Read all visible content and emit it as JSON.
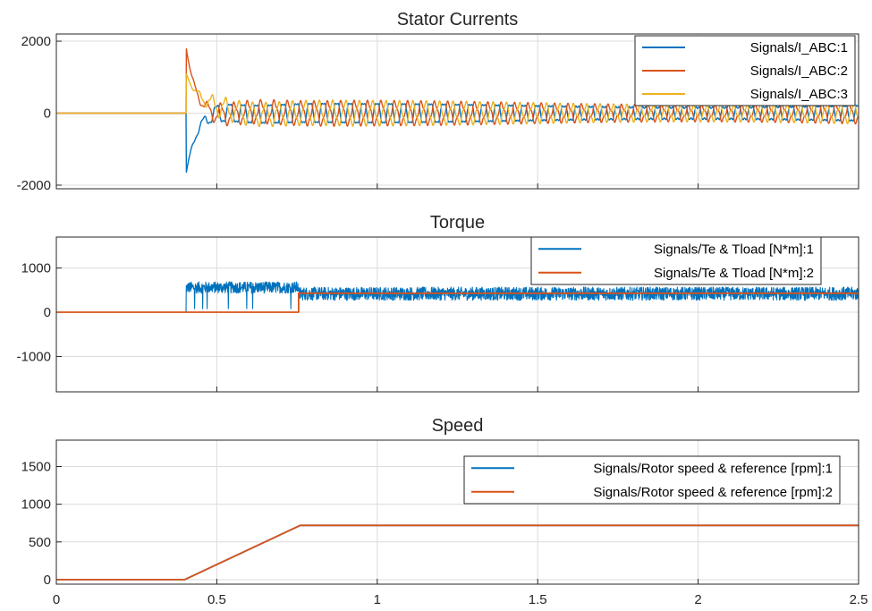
{
  "chart_data": [
    {
      "type": "line",
      "title": "Stator Currents",
      "xlim": [
        0,
        2.5
      ],
      "ylim": [
        -2100,
        2200
      ],
      "xticks": [
        0,
        0.5,
        1,
        1.5,
        2,
        2.5
      ],
      "xtick_labels": [
        "",
        "",
        "",
        "",
        "",
        ""
      ],
      "yticks": [
        -2000,
        0,
        2000
      ],
      "ytick_labels": [
        "-2000",
        "0",
        "2000"
      ],
      "grid": true,
      "legend_position": "top-right",
      "series": [
        {
          "name": "Signals/I_ABC:1",
          "color": "#0072BD"
        },
        {
          "name": "Signals/I_ABC:2",
          "color": "#D95319"
        },
        {
          "name": "Signals/I_ABC:3",
          "color": "#EDB120"
        }
      ],
      "description": "Three-phase currents: 0 until t=0.40, large transient peaks (~1800 phase 2, ~-1650 phase 1, ~1100 phase 3) decaying by ~0.6, then steady oscillation amplitude ~300-400 with ~25 periods to 2.5"
    },
    {
      "type": "line",
      "title": "Torque",
      "xlim": [
        0,
        2.5
      ],
      "ylim": [
        -1800,
        1700
      ],
      "xticks": [
        0,
        0.5,
        1,
        1.5,
        2,
        2.5
      ],
      "xtick_labels": [
        "",
        "",
        "",
        "",
        "",
        ""
      ],
      "yticks": [
        -1000,
        0,
        1000
      ],
      "ytick_labels": [
        "-1000",
        "0",
        "1000"
      ],
      "grid": true,
      "legend_position": "top-right",
      "series": [
        {
          "name": "Signals/Te & Tload [N*m]:1",
          "color": "#0072BD",
          "x": [
            0,
            0.4,
            0.405,
            0.42,
            0.75,
            0.76,
            2.5
          ],
          "y": [
            0,
            0,
            600,
            600,
            600,
            430,
            430
          ]
        },
        {
          "name": "Signals/Te & Tload [N*m]:2",
          "color": "#D95319",
          "x": [
            0,
            0.755,
            0.755,
            2.5
          ],
          "y": [
            0,
            0,
            430,
            430
          ]
        }
      ]
    },
    {
      "type": "line",
      "title": "Speed",
      "xlim": [
        0,
        2.5
      ],
      "ylim": [
        -60,
        1850
      ],
      "xticks": [
        0,
        0.5,
        1,
        1.5,
        2,
        2.5
      ],
      "xtick_labels": [
        "0",
        "0.5",
        "1",
        "1.5",
        "2",
        "2.5"
      ],
      "yticks": [
        0,
        500,
        1000,
        1500
      ],
      "ytick_labels": [
        "0",
        "500",
        "1000",
        "1500"
      ],
      "grid": true,
      "legend_position": "top-right",
      "series": [
        {
          "name": "Signals/Rotor speed & reference [rpm]:1",
          "color": "#0072BD",
          "x": [
            0,
            0.4,
            0.76,
            2.5
          ],
          "y": [
            0,
            0,
            720,
            720
          ]
        },
        {
          "name": "Signals/Rotor speed & reference [rpm]:2",
          "color": "#D95319",
          "x": [
            0,
            0.4,
            0.76,
            2.5
          ],
          "y": [
            0,
            0,
            720,
            720
          ]
        }
      ]
    }
  ]
}
